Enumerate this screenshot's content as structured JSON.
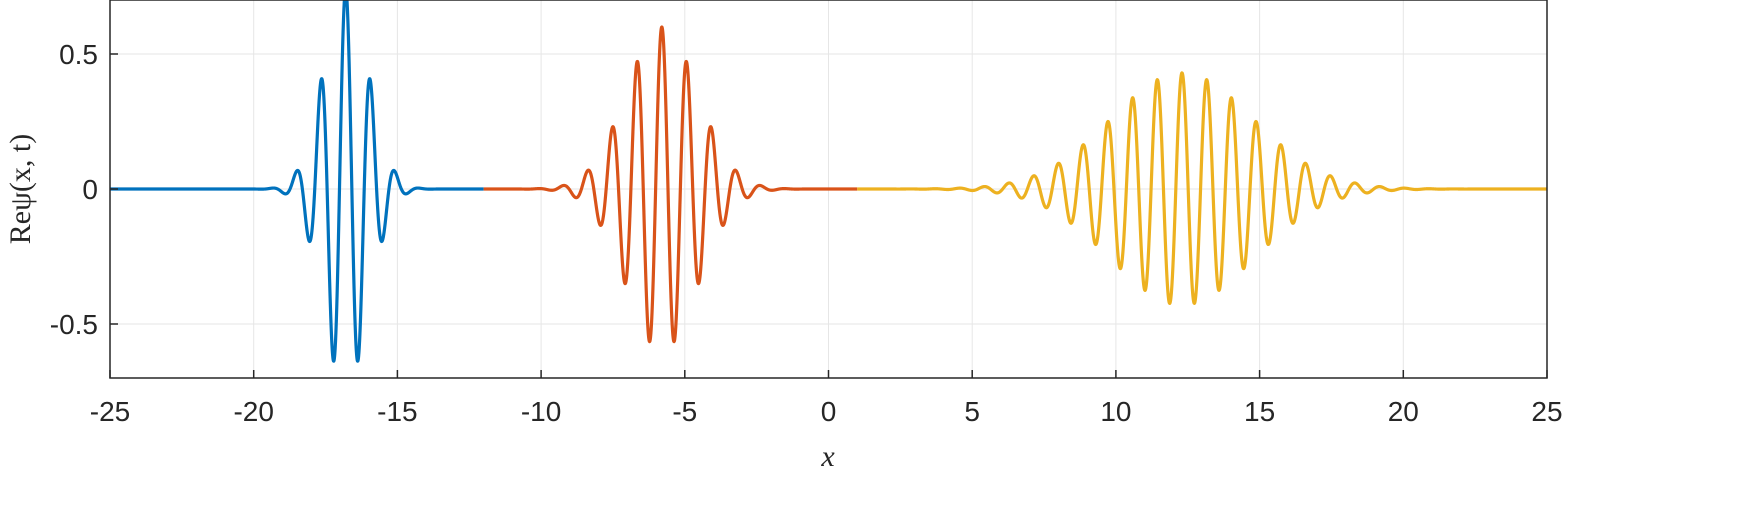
{
  "chart_data": {
    "type": "line",
    "xlabel": "x",
    "ylabel": "Reψ(x, t)",
    "xlim": [
      -25,
      25
    ],
    "ylim": [
      -0.7,
      0.7
    ],
    "xticks": [
      -25,
      -20,
      -15,
      -10,
      -5,
      0,
      5,
      10,
      15,
      20,
      25
    ],
    "xtick_labels": [
      "-25",
      "-20",
      "-15",
      "-10",
      "-5",
      "0",
      "5",
      "10",
      "15",
      "20",
      "25"
    ],
    "yticks": [
      -0.5,
      0,
      0.5
    ],
    "ytick_labels": [
      "-0.5",
      "0",
      "0.5"
    ],
    "grid": true,
    "series": [
      {
        "color": "#0072BD",
        "x_range": [
          -25,
          -12
        ],
        "center": -16.8,
        "envelope_width": 1.1,
        "amplitude": 0.74,
        "wave_number": 7.3
      },
      {
        "color": "#D95319",
        "x_range": [
          -12,
          1
        ],
        "center": -5.8,
        "envelope_width": 1.75,
        "amplitude": 0.6,
        "wave_number": 7.3
      },
      {
        "color": "#EDB120",
        "x_range": [
          1,
          25
        ],
        "center": 12.3,
        "envelope_width": 3.5,
        "amplitude": 0.43,
        "wave_number": 7.3
      }
    ]
  }
}
